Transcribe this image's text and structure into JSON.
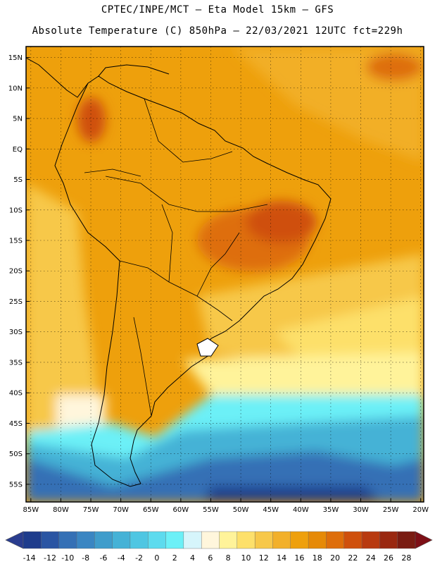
{
  "header": {
    "line1": "CPTEC/INPE/MCT –  Eta Model 15km – GFS",
    "line2": "Absolute Temperature (C) 850hPa – 22/03/2021 12UTC fct=229h"
  },
  "map": {
    "lat_labels": [
      "15N",
      "10N",
      "5N",
      "EQ",
      "5S",
      "10S",
      "15S",
      "20S",
      "25S",
      "30S",
      "35S",
      "40S",
      "45S",
      "50S",
      "55S"
    ],
    "lat_values": [
      15,
      10,
      5,
      0,
      -5,
      -10,
      -15,
      -20,
      -25,
      -30,
      -35,
      -40,
      -45,
      -50,
      -55
    ],
    "lon_labels": [
      "85W",
      "80W",
      "75W",
      "70W",
      "65W",
      "60W",
      "55W",
      "50W",
      "45W",
      "40W",
      "35W",
      "30W",
      "25W",
      "20W"
    ],
    "lon_values": [
      -85,
      -80,
      -75,
      -70,
      -65,
      -60,
      -55,
      -50,
      -45,
      -40,
      -35,
      -30,
      -25,
      -20
    ],
    "extent": {
      "lon_min": -85.8,
      "lon_max": -19.5,
      "lat_min": -57.9,
      "lat_max": 16.8
    }
  },
  "colorbar": {
    "ticks": [
      "-14",
      "-12",
      "-10",
      "-8",
      "-6",
      "-4",
      "-2",
      "0",
      "2",
      "4",
      "6",
      "8",
      "10",
      "12",
      "14",
      "16",
      "18",
      "20",
      "22",
      "24",
      "26",
      "28"
    ],
    "colors": [
      "#1e3c8c",
      "#2a55a3",
      "#3470b5",
      "#3a86c2",
      "#3f9dcb",
      "#45b2d6",
      "#4fc6e2",
      "#5ddbee",
      "#6cf0f7",
      "#d6f5fb",
      "#fff6dc",
      "#fff39a",
      "#fde06b",
      "#f7c84a",
      "#f2b02a",
      "#eea00c",
      "#e68a06",
      "#de6e0a",
      "#cf500c",
      "#b83a10",
      "#9a2810",
      "#7a1c12"
    ],
    "under_color": "#2a3d8f",
    "over_color": "#7d0f16"
  }
}
